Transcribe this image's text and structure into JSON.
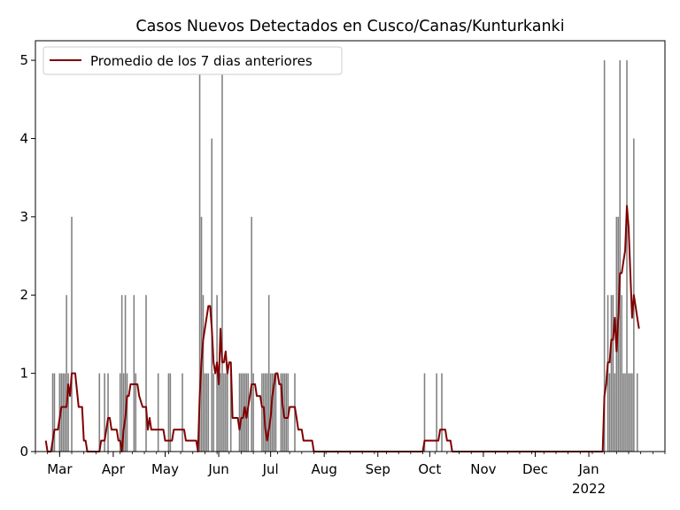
{
  "chart_data": {
    "type": "bar",
    "title": "Casos Nuevos Detectados en Cusco/Canas/Kunturkanki",
    "xlabel": "",
    "ylabel": "",
    "x_start": "2021-02-15",
    "x_end": "2022-02-14",
    "ylim": [
      0,
      5.25
    ],
    "y_ticks": [
      0,
      1,
      2,
      3,
      4,
      5
    ],
    "x_ticks": [
      {
        "date": "2021-03-01",
        "label": "Mar",
        "sublabel": ""
      },
      {
        "date": "2021-04-01",
        "label": "Apr",
        "sublabel": ""
      },
      {
        "date": "2021-05-01",
        "label": "May",
        "sublabel": ""
      },
      {
        "date": "2021-06-01",
        "label": "Jun",
        "sublabel": ""
      },
      {
        "date": "2021-07-01",
        "label": "Jul",
        "sublabel": ""
      },
      {
        "date": "2021-08-01",
        "label": "Aug",
        "sublabel": ""
      },
      {
        "date": "2021-09-01",
        "label": "Sep",
        "sublabel": ""
      },
      {
        "date": "2021-10-01",
        "label": "Oct",
        "sublabel": ""
      },
      {
        "date": "2021-11-01",
        "label": "Nov",
        "sublabel": ""
      },
      {
        "date": "2021-12-01",
        "label": "Dec",
        "sublabel": ""
      },
      {
        "date": "2022-01-01",
        "label": "Jan",
        "sublabel": "2022"
      }
    ],
    "legend": {
      "placement": "upper-left",
      "label": "Promedio de los 7 dias anteriores"
    },
    "grid": false,
    "bar_color": "#808080",
    "line_color": "#800000",
    "series": [
      {
        "kind": "bar",
        "points": [
          [
            "2021-02-25",
            1
          ],
          [
            "2021-02-26",
            1
          ],
          [
            "2021-03-01",
            1
          ],
          [
            "2021-03-02",
            1
          ],
          [
            "2021-03-03",
            1
          ],
          [
            "2021-03-04",
            1
          ],
          [
            "2021-03-05",
            2
          ],
          [
            "2021-03-06",
            1
          ],
          [
            "2021-03-08",
            3
          ],
          [
            "2021-03-24",
            1
          ],
          [
            "2021-03-27",
            1
          ],
          [
            "2021-03-29",
            1
          ],
          [
            "2021-04-05",
            1
          ],
          [
            "2021-04-06",
            2
          ],
          [
            "2021-04-07",
            1
          ],
          [
            "2021-04-08",
            2
          ],
          [
            "2021-04-09",
            1
          ],
          [
            "2021-04-13",
            2
          ],
          [
            "2021-04-14",
            1
          ],
          [
            "2021-04-20",
            2
          ],
          [
            "2021-04-27",
            1
          ],
          [
            "2021-05-03",
            1
          ],
          [
            "2021-05-04",
            1
          ],
          [
            "2021-05-11",
            1
          ],
          [
            "2021-05-21",
            5
          ],
          [
            "2021-05-22",
            3
          ],
          [
            "2021-05-23",
            2
          ],
          [
            "2021-05-24",
            1
          ],
          [
            "2021-05-25",
            1
          ],
          [
            "2021-05-26",
            1
          ],
          [
            "2021-05-28",
            4
          ],
          [
            "2021-05-29",
            1
          ],
          [
            "2021-05-31",
            2
          ],
          [
            "2021-06-01",
            1
          ],
          [
            "2021-06-02",
            1
          ],
          [
            "2021-06-03",
            5
          ],
          [
            "2021-06-04",
            1
          ],
          [
            "2021-06-05",
            1
          ],
          [
            "2021-06-06",
            1
          ],
          [
            "2021-06-08",
            1
          ],
          [
            "2021-06-13",
            1
          ],
          [
            "2021-06-14",
            1
          ],
          [
            "2021-06-15",
            1
          ],
          [
            "2021-06-16",
            1
          ],
          [
            "2021-06-17",
            1
          ],
          [
            "2021-06-18",
            1
          ],
          [
            "2021-06-20",
            3
          ],
          [
            "2021-06-21",
            1
          ],
          [
            "2021-06-26",
            1
          ],
          [
            "2021-06-27",
            1
          ],
          [
            "2021-06-28",
            1
          ],
          [
            "2021-06-29",
            1
          ],
          [
            "2021-06-30",
            2
          ],
          [
            "2021-07-01",
            1
          ],
          [
            "2021-07-02",
            1
          ],
          [
            "2021-07-03",
            1
          ],
          [
            "2021-07-04",
            1
          ],
          [
            "2021-07-07",
            1
          ],
          [
            "2021-07-08",
            1
          ],
          [
            "2021-07-09",
            1
          ],
          [
            "2021-07-10",
            1
          ],
          [
            "2021-07-11",
            1
          ],
          [
            "2021-07-15",
            1
          ],
          [
            "2021-09-28",
            1
          ],
          [
            "2021-10-05",
            1
          ],
          [
            "2021-10-08",
            1
          ],
          [
            "2022-01-10",
            5
          ],
          [
            "2022-01-12",
            2
          ],
          [
            "2022-01-13",
            1
          ],
          [
            "2022-01-14",
            2
          ],
          [
            "2022-01-15",
            2
          ],
          [
            "2022-01-16",
            1
          ],
          [
            "2022-01-17",
            3
          ],
          [
            "2022-01-18",
            3
          ],
          [
            "2022-01-19",
            5
          ],
          [
            "2022-01-20",
            2
          ],
          [
            "2022-01-21",
            1
          ],
          [
            "2022-01-22",
            1
          ],
          [
            "2022-01-23",
            5
          ],
          [
            "2022-01-24",
            1
          ],
          [
            "2022-01-25",
            1
          ],
          [
            "2022-01-26",
            1
          ],
          [
            "2022-01-27",
            4
          ],
          [
            "2022-01-29",
            1
          ]
        ]
      },
      {
        "kind": "line",
        "name": "Promedio de los 7 dias anteriores",
        "points": [
          [
            "2021-02-21",
            0.14
          ],
          [
            "2021-02-22",
            0
          ],
          [
            "2021-02-24",
            0
          ],
          [
            "2021-02-25",
            0.14
          ],
          [
            "2021-02-26",
            0.28
          ],
          [
            "2021-02-28",
            0.28
          ],
          [
            "2021-03-02",
            0.57
          ],
          [
            "2021-03-05",
            0.57
          ],
          [
            "2021-03-06",
            0.86
          ],
          [
            "2021-03-07",
            0.71
          ],
          [
            "2021-03-08",
            1.0
          ],
          [
            "2021-03-10",
            1.0
          ],
          [
            "2021-03-12",
            0.57
          ],
          [
            "2021-03-14",
            0.57
          ],
          [
            "2021-03-15",
            0.14
          ],
          [
            "2021-03-16",
            0.14
          ],
          [
            "2021-03-17",
            0
          ],
          [
            "2021-03-24",
            0
          ],
          [
            "2021-03-25",
            0.14
          ],
          [
            "2021-03-27",
            0.14
          ],
          [
            "2021-03-28",
            0.28
          ],
          [
            "2021-03-29",
            0.43
          ],
          [
            "2021-03-30",
            0.43
          ],
          [
            "2021-03-31",
            0.28
          ],
          [
            "2021-04-03",
            0.28
          ],
          [
            "2021-04-04",
            0.14
          ],
          [
            "2021-04-05",
            0.14
          ],
          [
            "2021-04-06",
            0
          ],
          [
            "2021-04-07",
            0.28
          ],
          [
            "2021-04-08",
            0.43
          ],
          [
            "2021-04-09",
            0.71
          ],
          [
            "2021-04-10",
            0.71
          ],
          [
            "2021-04-11",
            0.86
          ],
          [
            "2021-04-15",
            0.86
          ],
          [
            "2021-04-16",
            0.71
          ],
          [
            "2021-04-18",
            0.57
          ],
          [
            "2021-04-20",
            0.57
          ],
          [
            "2021-04-21",
            0.28
          ],
          [
            "2021-04-22",
            0.43
          ],
          [
            "2021-04-23",
            0.28
          ],
          [
            "2021-04-30",
            0.28
          ],
          [
            "2021-05-01",
            0.14
          ],
          [
            "2021-05-05",
            0.14
          ],
          [
            "2021-05-06",
            0.28
          ],
          [
            "2021-05-12",
            0.28
          ],
          [
            "2021-05-13",
            0.14
          ],
          [
            "2021-05-19",
            0.14
          ],
          [
            "2021-05-20",
            0
          ],
          [
            "2021-05-21",
            0.71
          ],
          [
            "2021-05-22",
            1.14
          ],
          [
            "2021-05-23",
            1.43
          ],
          [
            "2021-05-24",
            1.57
          ],
          [
            "2021-05-26",
            1.86
          ],
          [
            "2021-05-27",
            1.86
          ],
          [
            "2021-05-28",
            1.57
          ],
          [
            "2021-05-29",
            1.14
          ],
          [
            "2021-05-30",
            1.0
          ],
          [
            "2021-05-31",
            1.14
          ],
          [
            "2021-06-01",
            0.86
          ],
          [
            "2021-06-02",
            1.57
          ],
          [
            "2021-06-03",
            1.14
          ],
          [
            "2021-06-04",
            1.14
          ],
          [
            "2021-06-05",
            1.28
          ],
          [
            "2021-06-06",
            1.0
          ],
          [
            "2021-06-07",
            1.14
          ],
          [
            "2021-06-08",
            1.14
          ],
          [
            "2021-06-09",
            0.43
          ],
          [
            "2021-06-12",
            0.43
          ],
          [
            "2021-06-13",
            0.28
          ],
          [
            "2021-06-14",
            0.43
          ],
          [
            "2021-06-15",
            0.43
          ],
          [
            "2021-06-16",
            0.57
          ],
          [
            "2021-06-17",
            0.43
          ],
          [
            "2021-06-18",
            0.57
          ],
          [
            "2021-06-19",
            0.71
          ],
          [
            "2021-06-20",
            0.86
          ],
          [
            "2021-06-22",
            0.86
          ],
          [
            "2021-06-23",
            0.71
          ],
          [
            "2021-06-25",
            0.71
          ],
          [
            "2021-06-26",
            0.57
          ],
          [
            "2021-06-27",
            0.57
          ],
          [
            "2021-06-28",
            0.28
          ],
          [
            "2021-06-29",
            0.14
          ],
          [
            "2021-06-30",
            0.28
          ],
          [
            "2021-07-01",
            0.43
          ],
          [
            "2021-07-02",
            0.71
          ],
          [
            "2021-07-03",
            0.86
          ],
          [
            "2021-07-04",
            1.0
          ],
          [
            "2021-07-05",
            1.0
          ],
          [
            "2021-07-06",
            0.86
          ],
          [
            "2021-07-07",
            0.86
          ],
          [
            "2021-07-08",
            0.57
          ],
          [
            "2021-07-09",
            0.43
          ],
          [
            "2021-07-11",
            0.43
          ],
          [
            "2021-07-12",
            0.57
          ],
          [
            "2021-07-15",
            0.57
          ],
          [
            "2021-07-16",
            0.43
          ],
          [
            "2021-07-17",
            0.28
          ],
          [
            "2021-07-19",
            0.28
          ],
          [
            "2021-07-20",
            0.14
          ],
          [
            "2021-07-25",
            0.14
          ],
          [
            "2021-07-26",
            0
          ],
          [
            "2021-09-27",
            0
          ],
          [
            "2021-09-28",
            0.14
          ],
          [
            "2021-10-06",
            0.14
          ],
          [
            "2021-10-07",
            0.28
          ],
          [
            "2021-10-10",
            0.28
          ],
          [
            "2021-10-11",
            0.14
          ],
          [
            "2021-10-13",
            0.14
          ],
          [
            "2021-10-14",
            0
          ],
          [
            "2022-01-09",
            0
          ],
          [
            "2022-01-10",
            0.71
          ],
          [
            "2022-01-11",
            0.86
          ],
          [
            "2022-01-12",
            1.14
          ],
          [
            "2022-01-13",
            1.14
          ],
          [
            "2022-01-14",
            1.43
          ],
          [
            "2022-01-15",
            1.43
          ],
          [
            "2022-01-16",
            1.71
          ],
          [
            "2022-01-17",
            1.28
          ],
          [
            "2022-01-18",
            1.71
          ],
          [
            "2022-01-19",
            2.28
          ],
          [
            "2022-01-20",
            2.28
          ],
          [
            "2022-01-21",
            2.43
          ],
          [
            "2022-01-22",
            2.57
          ],
          [
            "2022-01-23",
            3.14
          ],
          [
            "2022-01-24",
            2.86
          ],
          [
            "2022-01-25",
            2.28
          ],
          [
            "2022-01-26",
            1.71
          ],
          [
            "2022-01-27",
            2.0
          ],
          [
            "2022-01-28",
            1.86
          ],
          [
            "2022-01-29",
            1.71
          ],
          [
            "2022-01-30",
            1.57
          ]
        ]
      }
    ]
  }
}
